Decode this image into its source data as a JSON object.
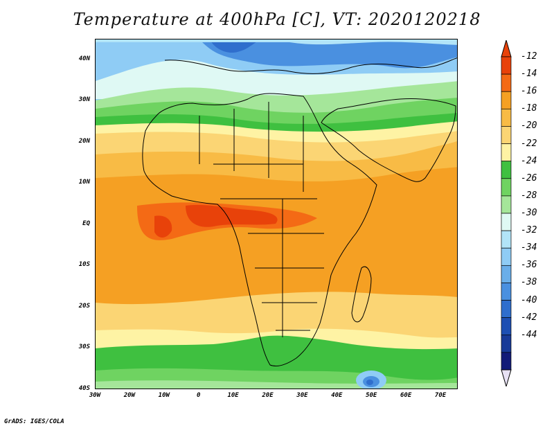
{
  "title": "Temperature at 400hPa [C], VT: 2020120218",
  "credit": "GrADS: IGES/COLA",
  "map": {
    "projection": "latitude-longitude",
    "lon_range": [
      -30,
      75
    ],
    "lat_range": [
      -40,
      45
    ],
    "lat_ticks": [
      {
        "value": 40,
        "label": "40N"
      },
      {
        "value": 30,
        "label": "30N"
      },
      {
        "value": 20,
        "label": "20N"
      },
      {
        "value": 10,
        "label": "10N"
      },
      {
        "value": 0,
        "label": "EQ"
      },
      {
        "value": -10,
        "label": "10S"
      },
      {
        "value": -20,
        "label": "20S"
      },
      {
        "value": -30,
        "label": "30S"
      },
      {
        "value": -40,
        "label": "40S"
      }
    ],
    "lon_ticks": [
      {
        "value": -30,
        "label": "30W"
      },
      {
        "value": -20,
        "label": "20W"
      },
      {
        "value": -10,
        "label": "10W"
      },
      {
        "value": 0,
        "label": "0"
      },
      {
        "value": 10,
        "label": "10E"
      },
      {
        "value": 20,
        "label": "20E"
      },
      {
        "value": 30,
        "label": "30E"
      },
      {
        "value": 40,
        "label": "40E"
      },
      {
        "value": 50,
        "label": "50E"
      },
      {
        "value": 60,
        "label": "60E"
      },
      {
        "value": 70,
        "label": "70E"
      }
    ]
  },
  "colorbar": {
    "levels": [
      "-12",
      "-14",
      "-16",
      "-18",
      "-20",
      "-22",
      "-24",
      "-26",
      "-28",
      "-30",
      "-32",
      "-34",
      "-36",
      "-38",
      "-40",
      "-42",
      "-44"
    ],
    "colors": [
      "#e8420a",
      "#f46a15",
      "#f5a023",
      "#f8bb45",
      "#fbd574",
      "#fef3a4",
      "#3fc040",
      "#6fd361",
      "#a5e69a",
      "#dff9f4",
      "#b2e4f8",
      "#8fccf5",
      "#6aaee9",
      "#4a90e0",
      "#2f6ecd",
      "#1d4fb3",
      "#183a98",
      "#121b78"
    ],
    "top_color": "#e8420a",
    "bottom_color": "#e7e1f4"
  }
}
